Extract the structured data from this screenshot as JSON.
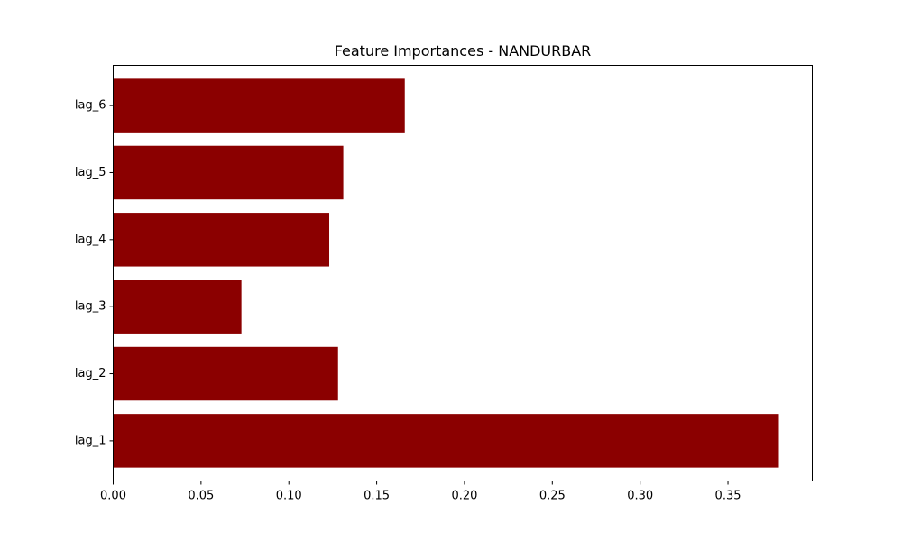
{
  "chart_data": {
    "type": "bar",
    "orientation": "horizontal",
    "title": "Feature Importances - NANDURBAR",
    "xlabel": "",
    "ylabel": "",
    "categories": [
      "lag_1",
      "lag_2",
      "lag_3",
      "lag_4",
      "lag_5",
      "lag_6"
    ],
    "values": [
      0.379,
      0.128,
      0.073,
      0.123,
      0.131,
      0.166
    ],
    "xlim": [
      0,
      0.398
    ],
    "xticks": [
      0.0,
      0.05,
      0.1,
      0.15,
      0.2,
      0.25,
      0.3,
      0.35
    ],
    "xtick_labels": [
      "0.00",
      "0.05",
      "0.10",
      "0.15",
      "0.20",
      "0.25",
      "0.30",
      "0.35"
    ],
    "grid": false,
    "bar_color": "#8b0000"
  }
}
